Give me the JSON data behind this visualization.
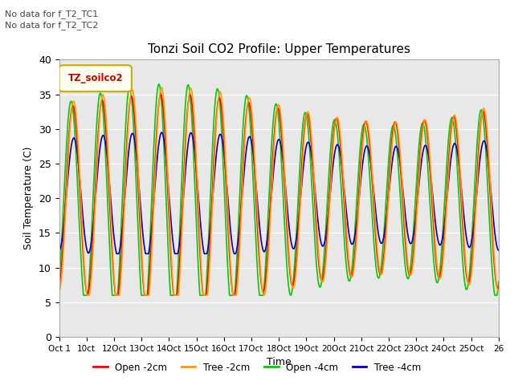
{
  "title": "Tonzi Soil CO2 Profile: Upper Temperatures",
  "xlabel": "Time",
  "ylabel": "Soil Temperature (C)",
  "no_data_text_1": "No data for f_T2_TC1",
  "no_data_text_2": "No data for f_T2_TC2",
  "legend_label": "TZ_soilco2",
  "ylim": [
    0,
    40
  ],
  "xlim": [
    0,
    25
  ],
  "xtick_labels": [
    "Oct 1",
    "10ct",
    "12Oct",
    "13Oct",
    "14Oct",
    "15Oct",
    "16Oct",
    "17Oct",
    "18Oct",
    "19Oct",
    "20Oct",
    "21Oct",
    "22Oct",
    "23Oct",
    "24Oct",
    "25Oct",
    "26"
  ],
  "series_labels": [
    "Open -2cm",
    "Tree -2cm",
    "Open -4cm",
    "Tree -4cm"
  ],
  "series_colors": [
    "#ff0000",
    "#ff9900",
    "#00cc00",
    "#0000cc"
  ],
  "bg_color": "#e8e8e8",
  "line_width": 1.2,
  "yticks": [
    0,
    5,
    10,
    15,
    20,
    25,
    30,
    35,
    40
  ]
}
